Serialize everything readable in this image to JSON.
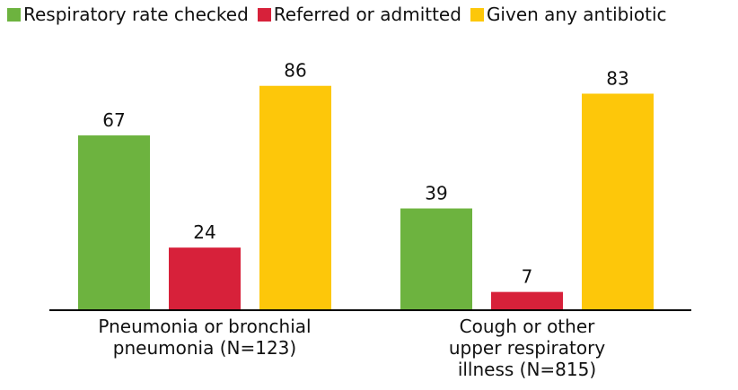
{
  "chart_data": {
    "type": "bar",
    "categories": [
      "Pneumonia or bronchial pneumonia (N=123)",
      "Cough or other upper respiratory illness (N=815)"
    ],
    "series": [
      {
        "name": "Respiratory rate checked",
        "color": "#6db33f",
        "values": [
          67,
          39
        ]
      },
      {
        "name": "Referred or admitted",
        "color": "#d7213a",
        "values": [
          24,
          7
        ]
      },
      {
        "name": "Given any antibiotic",
        "color": "#fdc70a",
        "values": [
          86,
          83
        ]
      }
    ],
    "ylim": [
      0,
      100
    ],
    "legend": "top"
  }
}
